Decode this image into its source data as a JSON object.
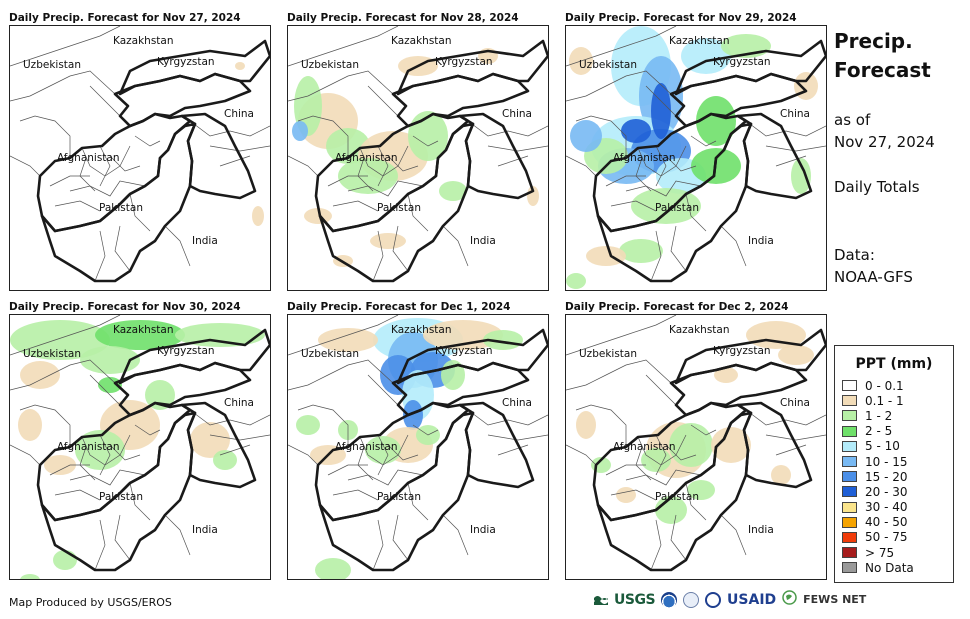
{
  "panels": [
    {
      "title": "Daily Precip. Forecast for Nov 27, 2024",
      "precip": "none"
    },
    {
      "title": "Daily Precip. Forecast for Nov 28, 2024",
      "precip": "light"
    },
    {
      "title": "Daily Precip. Forecast for Nov 29, 2024",
      "precip": "heavy"
    },
    {
      "title": "Daily Precip. Forecast for Nov 30, 2024",
      "precip": "moderate-north"
    },
    {
      "title": "Daily Precip. Forecast for Dec 1, 2024",
      "precip": "north-blue"
    },
    {
      "title": "Daily Precip. Forecast for Dec 2, 2024",
      "precip": "light-east"
    }
  ],
  "map_labels": {
    "kazakhstan": "Kazakhstan",
    "uzbekistan": "Uzbekistan",
    "kyrgyzstan": "Kyrgyzstan",
    "china": "China",
    "afghanistan": "Afghanistan",
    "pakistan": "Pakistan",
    "india": "India"
  },
  "sidebar": {
    "title_line1": "Precip.",
    "title_line2": "Forecast",
    "as_of": "as of",
    "date": "Nov 27, 2024",
    "daily_totals": "Daily Totals",
    "data_label": "Data:",
    "data_source": "NOAA-GFS"
  },
  "legend": {
    "title": "PPT (mm)",
    "items": [
      {
        "label": "0 - 0.1",
        "color": "#ffffff"
      },
      {
        "label": "0.1 - 1",
        "color": "#f2dcb8"
      },
      {
        "label": "1 - 2",
        "color": "#b7f0a6"
      },
      {
        "label": "2 - 5",
        "color": "#6fe06a"
      },
      {
        "label": "5 - 10",
        "color": "#b4ecfb"
      },
      {
        "label": "10 - 15",
        "color": "#78b9f3"
      },
      {
        "label": "15 - 20",
        "color": "#4b8fe8"
      },
      {
        "label": "20 - 30",
        "color": "#1f5fd6"
      },
      {
        "label": "30 - 40",
        "color": "#fbe58c"
      },
      {
        "label": "40 - 50",
        "color": "#f5a300"
      },
      {
        "label": "50 - 75",
        "color": "#f03c0a"
      },
      {
        "label": "> 75",
        "color": "#a61c1c"
      },
      {
        "label": "No Data",
        "color": "#9a9a9a"
      }
    ]
  },
  "footer": {
    "credit": "Map Produced by USGS/EROS",
    "logos": {
      "usgs": "USGS",
      "usaid": "USAID",
      "fewsnet": "FEWS NET"
    }
  }
}
